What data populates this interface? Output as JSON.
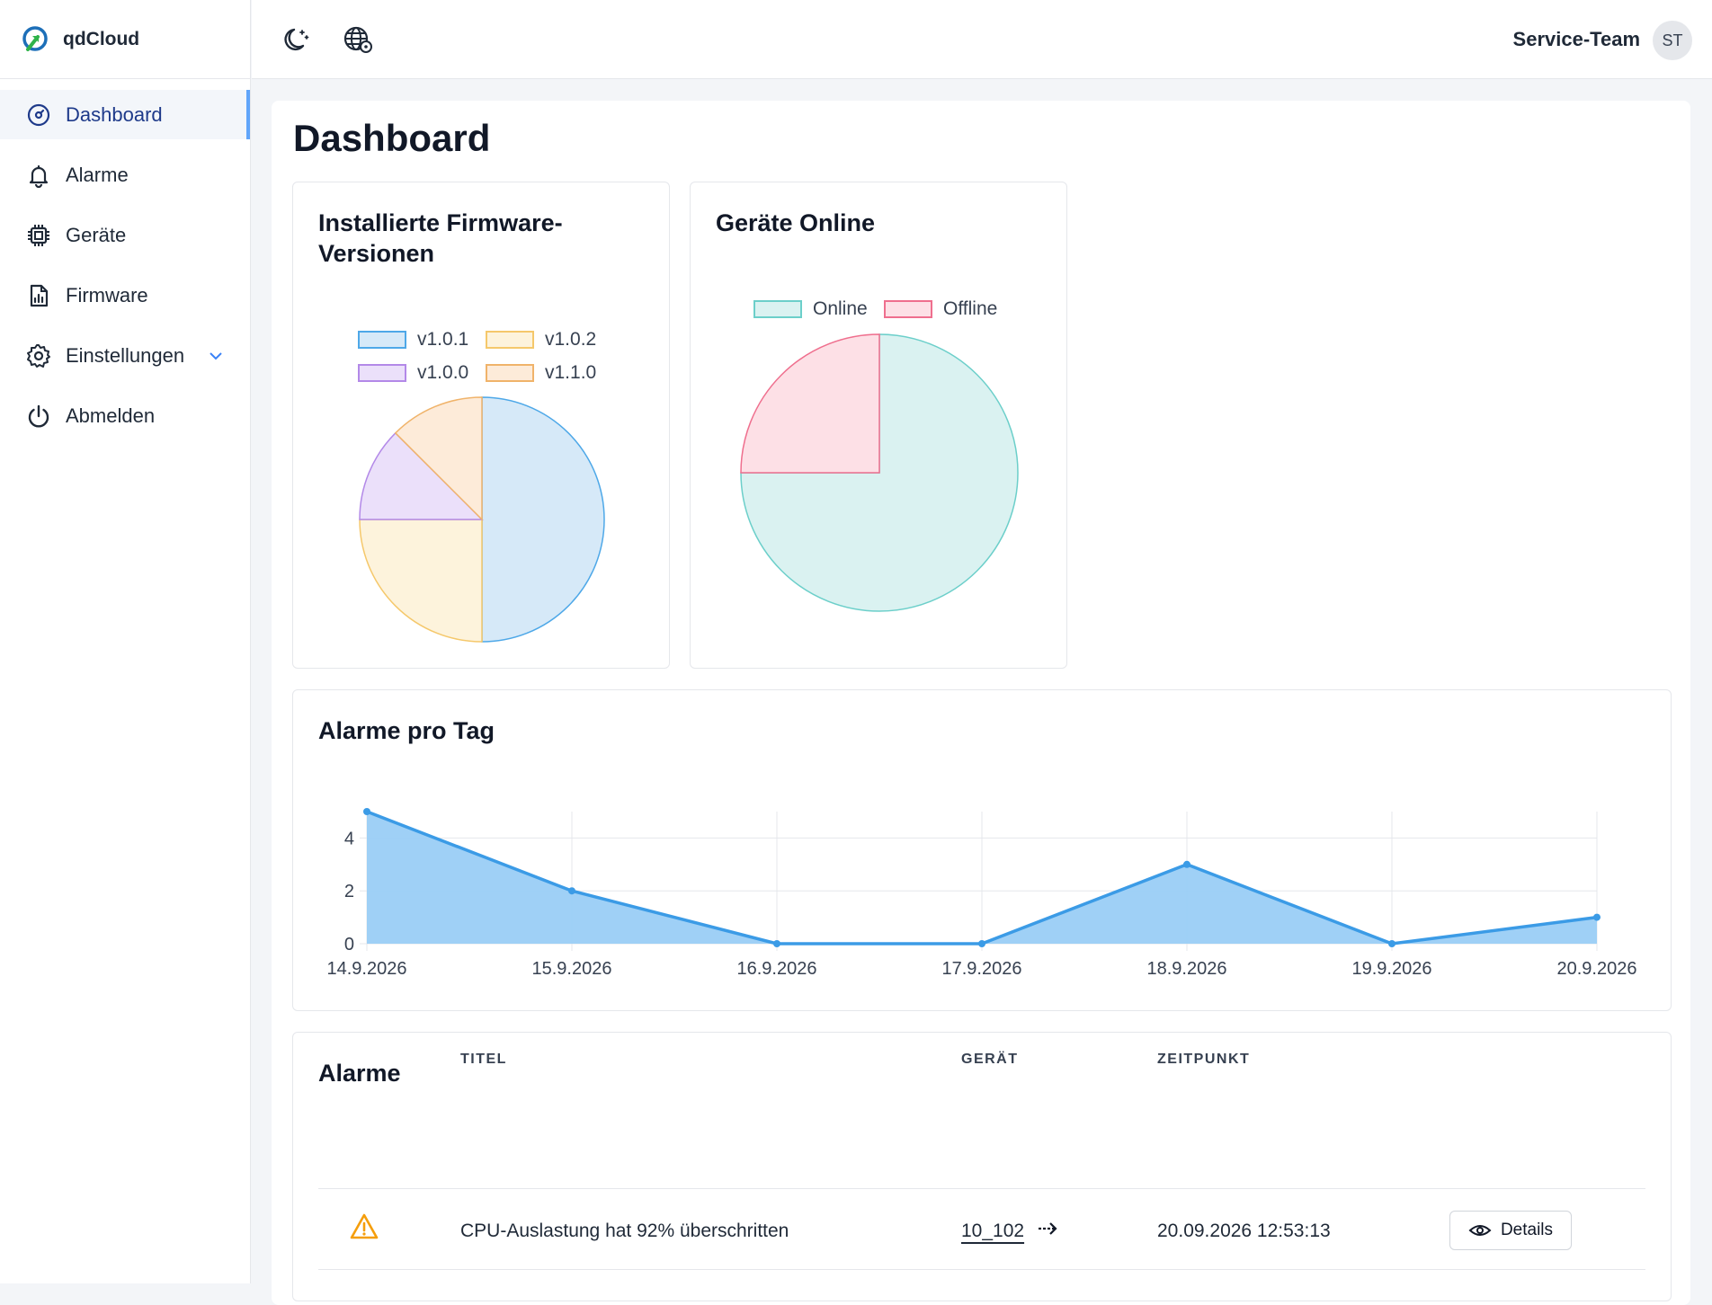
{
  "brand": {
    "name": "qdCloud"
  },
  "sidebar": {
    "items": [
      {
        "label": "Dashboard",
        "icon": "dashboard-icon",
        "active": true
      },
      {
        "label": "Alarme",
        "icon": "bell-icon"
      },
      {
        "label": "Geräte",
        "icon": "chip-icon"
      },
      {
        "label": "Firmware",
        "icon": "file-chart-icon"
      },
      {
        "label": "Einstellungen",
        "icon": "gear-icon",
        "expandable": true
      },
      {
        "label": "Abmelden",
        "icon": "power-icon"
      }
    ]
  },
  "header": {
    "icons": [
      "moon-icon",
      "globe-icon"
    ],
    "user_name": "Service-Team",
    "user_initials": "ST"
  },
  "page": {
    "title": "Dashboard"
  },
  "firmware_card": {
    "title": "Installierte Firmware-Versionen"
  },
  "online_card": {
    "title": "Geräte Online"
  },
  "alarms_chart_card": {
    "title": "Alarme pro Tag"
  },
  "chart_data": [
    {
      "type": "pie",
      "title": "Installierte Firmware-Versionen",
      "legend_position": "top",
      "labels": [
        "v1.0.1",
        "v1.0.2",
        "v1.0.0",
        "v1.1.0"
      ],
      "values": [
        50,
        25,
        12.5,
        12.5
      ],
      "colors": [
        "#4ea8e8",
        "#f5c86b",
        "#b389e8",
        "#f0b36a"
      ],
      "fills": [
        "#d6e9f8",
        "#fdf3dc",
        "#ebe0fa",
        "#fdebd9"
      ]
    },
    {
      "type": "pie",
      "title": "Geräte Online",
      "legend_position": "top",
      "labels": [
        "Online",
        "Offline"
      ],
      "values": [
        75,
        25
      ],
      "colors": [
        "#6ccfca",
        "#ef6f8e"
      ],
      "fills": [
        "#daf2f1",
        "#fde0e6"
      ]
    },
    {
      "type": "area",
      "title": "Alarme pro Tag",
      "categories": [
        "14.9.2026",
        "15.9.2026",
        "16.9.2026",
        "17.9.2026",
        "18.9.2026",
        "19.9.2026",
        "20.9.2026"
      ],
      "values": [
        5,
        2,
        0,
        0,
        3,
        0,
        1
      ],
      "yticks": [
        0,
        2,
        4
      ],
      "ylim": [
        0,
        5
      ],
      "grid": true,
      "line_color": "#3b9be6",
      "fill_color": "#9acdf5"
    }
  ],
  "alarms_table": {
    "title": "Alarme",
    "columns": [
      "TITEL",
      "GERÄT",
      "ZEITPUNKT"
    ],
    "rows": [
      {
        "icon": "warning-icon",
        "title": "CPU-Auslastung hat 92% überschritten",
        "device": "10_102",
        "timestamp": "20.09.2026 12:53:13",
        "action": "Details"
      }
    ]
  }
}
